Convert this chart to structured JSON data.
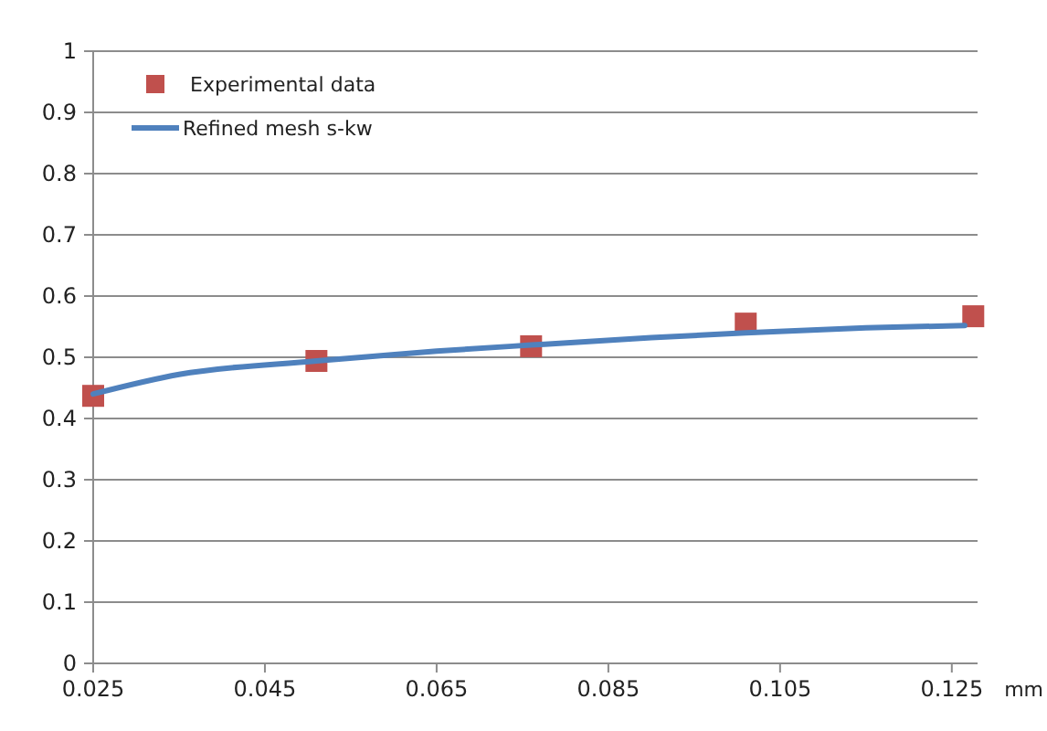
{
  "chart_data": {
    "type": "scatter",
    "xlabel": "mm",
    "xlim": [
      0.025,
      0.128
    ],
    "xticks": [
      0.025,
      0.045,
      0.065,
      0.085,
      0.105,
      0.125
    ],
    "ylim": [
      0,
      1
    ],
    "yticks": [
      0,
      0.1,
      0.2,
      0.3,
      0.4,
      0.5,
      0.6,
      0.7,
      0.8,
      0.9,
      1
    ],
    "grid": "y",
    "legend": "top left",
    "series": [
      {
        "name": "Experimental data",
        "marker": "square",
        "color": "#c0504d",
        "x": [
          0.025,
          0.051,
          0.076,
          0.101,
          0.1275
        ],
        "values": [
          0.437,
          0.494,
          0.518,
          0.555,
          0.567
        ]
      },
      {
        "name": "Refined mesh s-kw",
        "type": "line",
        "marker": "none",
        "color": "#4f81bd",
        "x": [
          0.025,
          0.035,
          0.051,
          0.065,
          0.076,
          0.09,
          0.101,
          0.115,
          0.1265
        ],
        "values": [
          0.44,
          0.472,
          0.494,
          0.51,
          0.52,
          0.532,
          0.54,
          0.548,
          0.552
        ]
      }
    ]
  }
}
